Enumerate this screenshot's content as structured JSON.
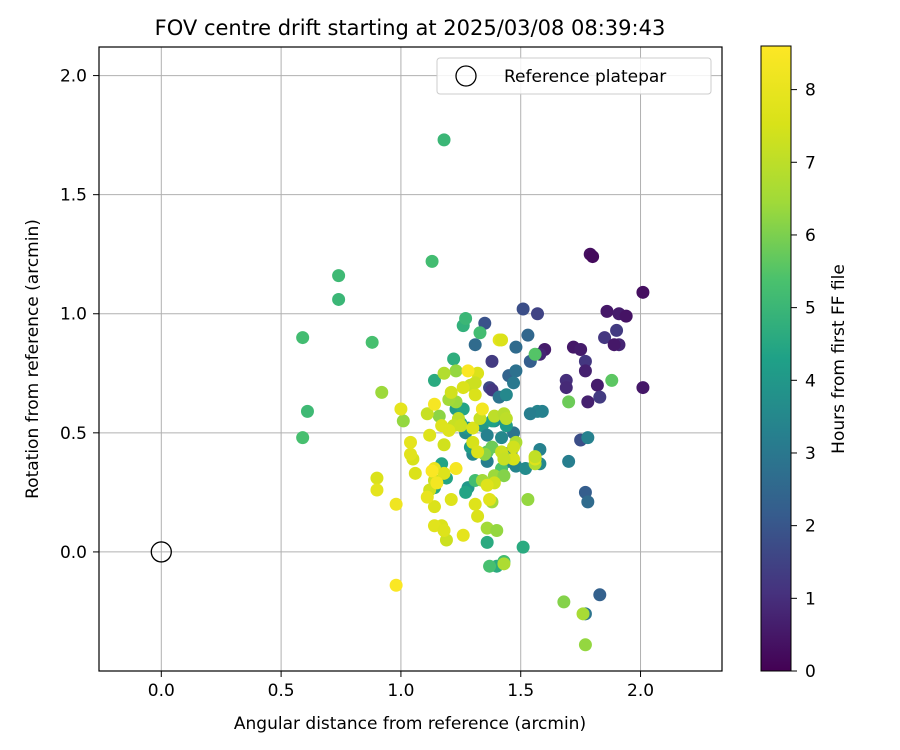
{
  "chart_data": {
    "type": "scatter",
    "title": "FOV centre drift starting at 2025/03/08 08:39:43",
    "xlabel": "Angular distance from reference (arcmin)",
    "ylabel": "Rotation from reference (arcmin)",
    "xlim": [
      -0.26,
      2.34
    ],
    "ylim": [
      -0.5,
      2.12
    ],
    "xticks": [
      0.0,
      0.5,
      1.0,
      1.5,
      2.0
    ],
    "xtick_labels": [
      "0.0",
      "0.5",
      "1.0",
      "1.5",
      "2.0"
    ],
    "yticks": [
      0.0,
      0.5,
      1.0,
      1.5,
      2.0
    ],
    "ytick_labels": [
      "0.0",
      "0.5",
      "1.0",
      "1.5",
      "2.0"
    ],
    "grid": true,
    "legend": {
      "location": "top-right",
      "entries": [
        "Reference platepar"
      ]
    },
    "reference_point": {
      "name": "Reference platepar",
      "x": 0.0,
      "y": 0.0
    },
    "colorbar": {
      "label": "Hours from first FF file",
      "range": [
        0,
        8.6
      ],
      "ticks": [
        0,
        1,
        2,
        3,
        4,
        5,
        6,
        7,
        8
      ],
      "tick_labels": [
        "0",
        "1",
        "2",
        "3",
        "4",
        "5",
        "6",
        "7",
        "8"
      ],
      "colormap": "viridis"
    },
    "points": [
      [
        1.79,
        1.25,
        0.3
      ],
      [
        1.8,
        1.24,
        0.2
      ],
      [
        2.01,
        1.09,
        0.3
      ],
      [
        1.86,
        1.01,
        0.5
      ],
      [
        1.91,
        1.0,
        0.6
      ],
      [
        1.94,
        0.99,
        0.4
      ],
      [
        1.85,
        0.9,
        1.2
      ],
      [
        1.9,
        0.93,
        1.3
      ],
      [
        1.91,
        0.87,
        0.8
      ],
      [
        1.89,
        0.87,
        0.5
      ],
      [
        1.72,
        0.86,
        0.5
      ],
      [
        1.75,
        0.85,
        0.6
      ],
      [
        1.77,
        0.8,
        1.2
      ],
      [
        1.77,
        0.76,
        0.7
      ],
      [
        1.69,
        0.72,
        1.0
      ],
      [
        1.69,
        0.69,
        0.9
      ],
      [
        1.82,
        0.7,
        0.6
      ],
      [
        1.78,
        0.63,
        0.7
      ],
      [
        1.83,
        0.65,
        1.3
      ],
      [
        2.01,
        0.69,
        0.5
      ],
      [
        1.6,
        0.85,
        0.6
      ],
      [
        1.58,
        0.83,
        0.8
      ],
      [
        1.57,
        1.0,
        1.5
      ],
      [
        1.51,
        1.02,
        1.8
      ],
      [
        1.75,
        0.47,
        1.8
      ],
      [
        1.77,
        0.25,
        2.2
      ],
      [
        1.78,
        0.21,
        2.6
      ],
      [
        1.83,
        -0.18,
        2.3
      ],
      [
        1.77,
        -0.26,
        2.9
      ],
      [
        1.7,
        0.38,
        3.2
      ],
      [
        1.78,
        0.48,
        3.3
      ],
      [
        1.35,
        0.96,
        1.9
      ],
      [
        1.31,
        0.87,
        2.6
      ],
      [
        1.38,
        0.8,
        1.3
      ],
      [
        1.37,
        0.69,
        1.6
      ],
      [
        1.38,
        0.68,
        1.2
      ],
      [
        1.48,
        0.86,
        2.6
      ],
      [
        1.53,
        0.91,
        2.5
      ],
      [
        1.54,
        0.8,
        2.2
      ],
      [
        1.45,
        0.74,
        2.4
      ],
      [
        1.48,
        0.76,
        2.8
      ],
      [
        1.47,
        0.71,
        3.0
      ],
      [
        1.41,
        0.65,
        2.9
      ],
      [
        1.44,
        0.66,
        3.5
      ],
      [
        1.42,
        0.56,
        3.8
      ],
      [
        1.39,
        0.55,
        3.6
      ],
      [
        1.34,
        0.53,
        4.0
      ],
      [
        1.47,
        0.5,
        2.9
      ],
      [
        1.46,
        0.42,
        3.0
      ],
      [
        1.42,
        0.48,
        3.5
      ],
      [
        1.36,
        0.49,
        3.3
      ],
      [
        1.3,
        0.41,
        3.5
      ],
      [
        1.36,
        0.38,
        3.2
      ],
      [
        1.45,
        0.38,
        3.6
      ],
      [
        1.48,
        0.36,
        3.4
      ],
      [
        1.57,
        0.59,
        3.4
      ],
      [
        1.54,
        0.58,
        3.2
      ],
      [
        1.59,
        0.59,
        3.3
      ],
      [
        1.58,
        0.43,
        3.3
      ],
      [
        1.58,
        0.37,
        3.5
      ],
      [
        1.52,
        0.35,
        3.6
      ],
      [
        1.44,
        0.53,
        4.1
      ],
      [
        1.38,
        0.55,
        4.3
      ],
      [
        1.26,
        0.95,
        4.8
      ],
      [
        1.27,
        0.98,
        5.0
      ],
      [
        1.33,
        0.92,
        5.2
      ],
      [
        1.22,
        0.81,
        4.7
      ],
      [
        1.14,
        0.72,
        4.6
      ],
      [
        1.23,
        0.6,
        4.1
      ],
      [
        1.26,
        0.6,
        4.4
      ],
      [
        1.27,
        0.5,
        3.6
      ],
      [
        1.28,
        0.52,
        4.0
      ],
      [
        1.25,
        0.54,
        4.6
      ],
      [
        1.29,
        0.44,
        4.1
      ],
      [
        1.28,
        0.27,
        4.0
      ],
      [
        1.27,
        0.25,
        4.4
      ],
      [
        1.17,
        0.37,
        4.4
      ],
      [
        1.14,
        0.27,
        4.5
      ],
      [
        1.19,
        0.31,
        4.4
      ],
      [
        1.31,
        0.3,
        5.2
      ],
      [
        1.36,
        0.04,
        4.6
      ],
      [
        1.4,
        -0.06,
        4.6
      ],
      [
        1.51,
        0.02,
        4.6
      ],
      [
        1.43,
        -0.04,
        5.2
      ],
      [
        1.37,
        -0.06,
        5.3
      ],
      [
        1.18,
        1.73,
        5.0
      ],
      [
        1.13,
        1.22,
        5.2
      ],
      [
        0.74,
        1.16,
        5.1
      ],
      [
        0.74,
        1.06,
        5.0
      ],
      [
        0.59,
        0.9,
        5.2
      ],
      [
        0.88,
        0.88,
        5.3
      ],
      [
        0.61,
        0.59,
        5.1
      ],
      [
        0.59,
        0.48,
        5.3
      ],
      [
        1.42,
        0.35,
        5.4
      ],
      [
        1.36,
        0.42,
        5.6
      ],
      [
        1.38,
        0.44,
        5.8
      ],
      [
        1.56,
        0.83,
        5.5
      ],
      [
        1.88,
        0.72,
        5.6
      ],
      [
        1.7,
        0.63,
        5.8
      ],
      [
        1.23,
        0.76,
        6.3
      ],
      [
        1.18,
        0.75,
        6.8
      ],
      [
        1.16,
        0.57,
        6.2
      ],
      [
        1.23,
        0.63,
        6.4
      ],
      [
        1.2,
        0.64,
        6.5
      ],
      [
        0.92,
        0.67,
        6.4
      ],
      [
        1.01,
        0.55,
        6.3
      ],
      [
        1.35,
        0.41,
        6.2
      ],
      [
        1.34,
        0.3,
        6.5
      ],
      [
        1.39,
        0.32,
        6.4
      ],
      [
        1.43,
        0.32,
        6.1
      ],
      [
        1.43,
        0.4,
        6.4
      ],
      [
        1.48,
        0.46,
        6.7
      ],
      [
        1.56,
        0.37,
        6.8
      ],
      [
        1.53,
        0.22,
        6.3
      ],
      [
        1.38,
        0.21,
        6.5
      ],
      [
        1.36,
        0.1,
        6.5
      ],
      [
        1.4,
        0.09,
        6.3
      ],
      [
        1.43,
        -0.05,
        6.7
      ],
      [
        1.68,
        -0.21,
        6.1
      ],
      [
        1.76,
        -0.26,
        6.6
      ],
      [
        1.77,
        -0.39,
        6.3
      ],
      [
        1.29,
        0.7,
        7.2
      ],
      [
        1.32,
        0.75,
        7.6
      ],
      [
        1.31,
        0.66,
        7.6
      ],
      [
        1.24,
        0.56,
        7.0
      ],
      [
        1.22,
        0.53,
        7.2
      ],
      [
        1.25,
        0.53,
        7.3
      ],
      [
        1.3,
        0.52,
        7.6
      ],
      [
        1.2,
        0.51,
        7.7
      ],
      [
        1.18,
        0.45,
        7.4
      ],
      [
        1.3,
        0.46,
        7.5
      ],
      [
        1.32,
        0.42,
        7.6
      ],
      [
        1.33,
        0.56,
        7.2
      ],
      [
        1.39,
        0.57,
        7.0
      ],
      [
        1.43,
        0.58,
        6.9
      ],
      [
        1.47,
        0.44,
        7.4
      ],
      [
        1.42,
        0.42,
        7.3
      ],
      [
        1.47,
        0.39,
        7.5
      ],
      [
        1.43,
        0.39,
        7.2
      ],
      [
        1.56,
        0.39,
        7.7
      ],
      [
        1.56,
        0.4,
        7.1
      ],
      [
        1.39,
        0.29,
        7.4
      ],
      [
        1.36,
        0.28,
        7.7
      ],
      [
        1.31,
        0.2,
        7.7
      ],
      [
        1.37,
        0.22,
        7.8
      ],
      [
        1.32,
        0.15,
        7.6
      ],
      [
        1.17,
        0.11,
        7.6
      ],
      [
        1.14,
        0.11,
        7.8
      ],
      [
        1.19,
        0.05,
        7.3
      ],
      [
        1.18,
        0.09,
        7.7
      ],
      [
        1.26,
        0.07,
        7.9
      ],
      [
        1.14,
        0.19,
        7.6
      ],
      [
        1.21,
        0.22,
        7.7
      ],
      [
        1.12,
        0.26,
        7.4
      ],
      [
        1.14,
        0.3,
        7.3
      ],
      [
        1.06,
        0.33,
        7.6
      ],
      [
        1.05,
        0.39,
        7.5
      ],
      [
        1.04,
        0.41,
        7.8
      ],
      [
        1.04,
        0.46,
        7.9
      ],
      [
        1.12,
        0.49,
        7.7
      ],
      [
        1.17,
        0.53,
        7.7
      ],
      [
        1.11,
        0.58,
        7.2
      ],
      [
        1.14,
        0.62,
        8.4
      ],
      [
        1.21,
        0.67,
        7.4
      ],
      [
        1.26,
        0.69,
        7.6
      ],
      [
        1.31,
        0.71,
        7.3
      ],
      [
        1.28,
        0.76,
        8.5
      ],
      [
        1.41,
        0.89,
        7.9
      ],
      [
        1.42,
        0.89,
        7.6
      ],
      [
        1.0,
        0.6,
        7.9
      ],
      [
        0.9,
        0.31,
        7.6
      ],
      [
        0.9,
        0.26,
        7.9
      ],
      [
        0.98,
        0.2,
        8.2
      ],
      [
        1.11,
        0.23,
        8.0
      ],
      [
        1.23,
        0.35,
        8.4
      ],
      [
        1.14,
        0.35,
        8.0
      ],
      [
        1.18,
        0.33,
        7.7
      ],
      [
        1.34,
        0.6,
        8.3
      ],
      [
        0.98,
        -0.14,
        8.5
      ],
      [
        1.15,
        0.29,
        8.3
      ],
      [
        1.13,
        0.34,
        8.5
      ],
      [
        1.44,
        0.56,
        7.0
      ]
    ]
  }
}
